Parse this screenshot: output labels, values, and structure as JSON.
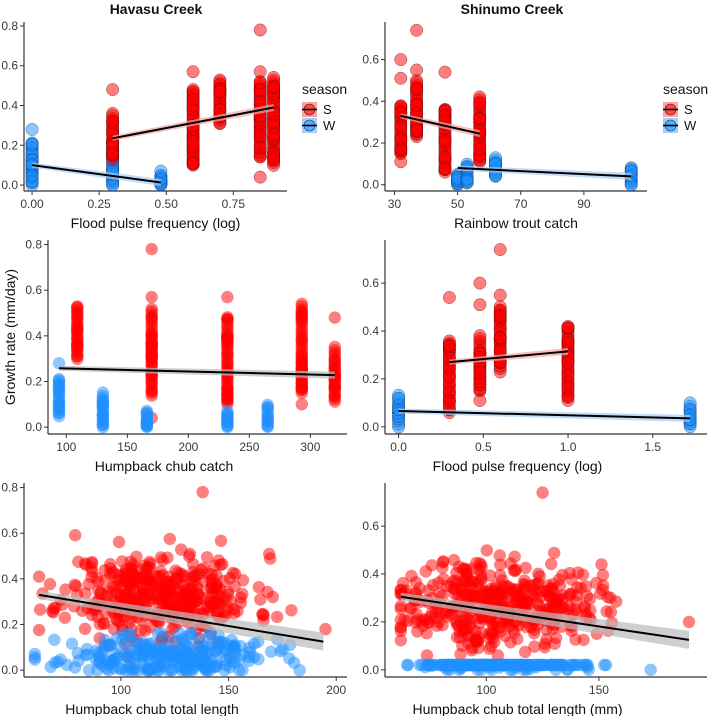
{
  "figure": {
    "columns": [
      "Havasu Creek",
      "Shinumo Creek"
    ],
    "shared_ylabel": "Growth rate (mm/day)"
  },
  "colors": {
    "S": "#ff0000",
    "W": "#1e90ff",
    "fit_line": "#000000",
    "ci_band": "#bbbbbb"
  },
  "legend": {
    "title": "season",
    "entries": [
      {
        "key": "S",
        "label": "S"
      },
      {
        "key": "W",
        "label": "W"
      }
    ]
  },
  "chart_data": [
    {
      "id": "havasu-flood",
      "type": "scatter",
      "title": "Havasu Creek",
      "xlabel": "Flood pulse frequency (log)",
      "ylabel": "",
      "xlim": [
        -0.03,
        0.95
      ],
      "ylim": [
        -0.03,
        0.82
      ],
      "xticks": [
        0.0,
        0.25,
        0.5,
        0.75
      ],
      "xtick_labels": [
        "0.00",
        "0.25",
        "0.50",
        "0.75"
      ],
      "yticks": [
        0.0,
        0.2,
        0.4,
        0.6,
        0.8
      ],
      "ytick_labels": [
        "0.0",
        "0.2",
        "0.4",
        "0.6",
        "0.8"
      ],
      "legend": true,
      "outlined": true,
      "groups": [
        {
          "season": "W",
          "x": 0.0,
          "ymin": 0.0,
          "ymax": 0.21,
          "outliers": [
            0.28
          ]
        },
        {
          "season": "W",
          "x": 0.3,
          "ymin": 0.0,
          "ymax": 0.22,
          "outliers": []
        },
        {
          "season": "W",
          "x": 0.48,
          "ymin": 0.0,
          "ymax": 0.05,
          "outliers": [
            0.07
          ]
        },
        {
          "season": "S",
          "x": 0.3,
          "ymin": 0.13,
          "ymax": 0.36,
          "outliers": [
            0.48
          ]
        },
        {
          "season": "S",
          "x": 0.6,
          "ymin": 0.1,
          "ymax": 0.48,
          "outliers": [
            0.57
          ]
        },
        {
          "season": "S",
          "x": 0.7,
          "ymin": 0.31,
          "ymax": 0.53,
          "outliers": []
        },
        {
          "season": "S",
          "x": 0.85,
          "ymin": 0.14,
          "ymax": 0.52,
          "outliers": [
            0.04,
            0.57,
            0.78
          ]
        },
        {
          "season": "S",
          "x": 0.9,
          "ymin": 0.1,
          "ymax": 0.54,
          "outliers": []
        }
      ],
      "fits": [
        {
          "season": "S",
          "x": [
            0.3,
            0.9
          ],
          "y": [
            0.235,
            0.39
          ]
        },
        {
          "season": "W",
          "x": [
            0.0,
            0.48
          ],
          "y": [
            0.1,
            0.013
          ]
        }
      ]
    },
    {
      "id": "shinumo-trout",
      "type": "scatter",
      "title": "Shinumo Creek",
      "xlabel": "Rainbow trout catch",
      "ylabel": "",
      "xlim": [
        27,
        110
      ],
      "ylim": [
        -0.03,
        0.78
      ],
      "xticks": [
        30,
        50,
        70,
        90
      ],
      "xtick_labels": [
        "30",
        "50",
        "70",
        "90"
      ],
      "yticks": [
        0.0,
        0.2,
        0.4,
        0.6
      ],
      "ytick_labels": [
        "0.0",
        "0.2",
        "0.4",
        "0.6"
      ],
      "legend": true,
      "outlined": true,
      "groups": [
        {
          "season": "S",
          "x": 32,
          "ymin": 0.15,
          "ymax": 0.38,
          "outliers": [
            0.11,
            0.51,
            0.6
          ]
        },
        {
          "season": "S",
          "x": 37,
          "ymin": 0.23,
          "ymax": 0.5,
          "outliers": [
            0.55,
            0.74
          ]
        },
        {
          "season": "S",
          "x": 46,
          "ymin": 0.06,
          "ymax": 0.36,
          "outliers": [
            0.54
          ]
        },
        {
          "season": "S",
          "x": 57,
          "ymin": 0.11,
          "ymax": 0.42,
          "outliers": []
        },
        {
          "season": "W",
          "x": 50,
          "ymin": 0.0,
          "ymax": 0.05,
          "outliers": []
        },
        {
          "season": "W",
          "x": 53,
          "ymin": 0.01,
          "ymax": 0.1,
          "outliers": []
        },
        {
          "season": "W",
          "x": 62,
          "ymin": 0.04,
          "ymax": 0.13,
          "outliers": []
        },
        {
          "season": "W",
          "x": 105,
          "ymin": 0.0,
          "ymax": 0.08,
          "outliers": []
        }
      ],
      "fits": [
        {
          "season": "S",
          "x": [
            32,
            57
          ],
          "y": [
            0.33,
            0.245
          ]
        },
        {
          "season": "W",
          "x": [
            50,
            105
          ],
          "y": [
            0.08,
            0.04
          ]
        }
      ]
    },
    {
      "id": "havasu-chub-catch",
      "type": "scatter",
      "title": "",
      "xlabel": "Humpback chub catch",
      "ylabel": "Growth rate (mm/day)",
      "xlim": [
        85,
        330
      ],
      "ylim": [
        -0.03,
        0.82
      ],
      "xticks": [
        100,
        150,
        200,
        250,
        300
      ],
      "xtick_labels": [
        "100",
        "150",
        "200",
        "250",
        "300"
      ],
      "yticks": [
        0.0,
        0.2,
        0.4,
        0.6,
        0.8
      ],
      "ytick_labels": [
        "0.0",
        "0.2",
        "0.4",
        "0.6",
        "0.8"
      ],
      "legend": false,
      "outlined": false,
      "groups": [
        {
          "season": "W",
          "x": 94,
          "ymin": 0.05,
          "ymax": 0.21,
          "outliers": [
            0.28
          ]
        },
        {
          "season": "W",
          "x": 130,
          "ymin": 0.0,
          "ymax": 0.15,
          "outliers": []
        },
        {
          "season": "W",
          "x": 166,
          "ymin": 0.0,
          "ymax": 0.07,
          "outliers": []
        },
        {
          "season": "W",
          "x": 232,
          "ymin": 0.0,
          "ymax": 0.07,
          "outliers": []
        },
        {
          "season": "W",
          "x": 265,
          "ymin": 0.0,
          "ymax": 0.1,
          "outliers": []
        },
        {
          "season": "S",
          "x": 109,
          "ymin": 0.3,
          "ymax": 0.53,
          "outliers": []
        },
        {
          "season": "S",
          "x": 170,
          "ymin": 0.14,
          "ymax": 0.52,
          "outliers": [
            0.04,
            0.57,
            0.78
          ]
        },
        {
          "season": "S",
          "x": 232,
          "ymin": 0.1,
          "ymax": 0.48,
          "outliers": [
            0.57
          ]
        },
        {
          "season": "S",
          "x": 293,
          "ymin": 0.15,
          "ymax": 0.54,
          "outliers": [
            0.1
          ]
        },
        {
          "season": "S",
          "x": 320,
          "ymin": 0.11,
          "ymax": 0.35,
          "outliers": [
            0.48
          ]
        }
      ],
      "fits": [
        {
          "season": "all",
          "x": [
            94,
            320
          ],
          "y": [
            0.258,
            0.228
          ]
        }
      ]
    },
    {
      "id": "shinumo-flood",
      "type": "scatter",
      "title": "",
      "xlabel": "Flood pulse frequency (log)",
      "ylabel": "",
      "xlim": [
        -0.08,
        1.82
      ],
      "ylim": [
        -0.03,
        0.78
      ],
      "xticks": [
        0.0,
        0.5,
        1.0,
        1.5
      ],
      "xtick_labels": [
        "0.0",
        "0.5",
        "1.0",
        "1.5"
      ],
      "yticks": [
        0.0,
        0.2,
        0.4,
        0.6
      ],
      "ytick_labels": [
        "0.0",
        "0.2",
        "0.4",
        "0.6"
      ],
      "legend": false,
      "outlined": true,
      "groups": [
        {
          "season": "W",
          "x": 0.0,
          "ymin": 0.0,
          "ymax": 0.13,
          "outliers": []
        },
        {
          "season": "W",
          "x": 1.72,
          "ymin": 0.0,
          "ymax": 0.1,
          "outliers": []
        },
        {
          "season": "S",
          "x": 0.3,
          "ymin": 0.06,
          "ymax": 0.36,
          "outliers": [
            0.54
          ]
        },
        {
          "season": "S",
          "x": 0.48,
          "ymin": 0.15,
          "ymax": 0.38,
          "outliers": [
            0.11,
            0.51,
            0.6
          ]
        },
        {
          "season": "S",
          "x": 0.6,
          "ymin": 0.23,
          "ymax": 0.5,
          "outliers": [
            0.55,
            0.74
          ]
        },
        {
          "season": "S",
          "x": 1.0,
          "ymin": 0.11,
          "ymax": 0.42,
          "outliers": []
        }
      ],
      "fits": [
        {
          "season": "S",
          "x": [
            0.3,
            1.0
          ],
          "y": [
            0.27,
            0.315
          ]
        },
        {
          "season": "W",
          "x": [
            0.0,
            1.72
          ],
          "y": [
            0.066,
            0.035
          ]
        }
      ]
    },
    {
      "id": "havasu-length",
      "type": "scatter",
      "title": "",
      "xlabel": "Humpback chub total length",
      "ylabel": "",
      "xlim": [
        55,
        205
      ],
      "ylim": [
        -0.03,
        0.82
      ],
      "xticks": [
        100,
        150,
        200
      ],
      "xtick_labels": [
        "100",
        "150",
        "200"
      ],
      "yticks": [
        0.0,
        0.2,
        0.4,
        0.6,
        0.8
      ],
      "ytick_labels": [
        "0.0",
        "0.2",
        "0.4",
        "0.6",
        "0.8"
      ],
      "legend": false,
      "outlined": false,
      "clouds": [
        {
          "season": "S",
          "n": 420,
          "x_range": [
            62,
            195
          ],
          "x_center": 118,
          "x_spread": 22,
          "y_center": 0.33,
          "y_spread": 0.09,
          "y_min": 0.04,
          "y_max": 0.78,
          "seed": 11
        },
        {
          "season": "W",
          "n": 260,
          "x_range": [
            60,
            183
          ],
          "x_center": 120,
          "x_spread": 24,
          "y_center": 0.06,
          "y_spread": 0.05,
          "y_min": 0.0,
          "y_max": 0.28,
          "seed": 23
        }
      ],
      "fits": [
        {
          "season": "all",
          "x": [
            62,
            194
          ],
          "y": [
            0.33,
            0.125
          ],
          "ci": true
        }
      ]
    },
    {
      "id": "shinumo-length",
      "type": "scatter",
      "title": "",
      "xlabel": "Humpback chub total length (mm)",
      "ylabel": "",
      "xlim": [
        55,
        198
      ],
      "ylim": [
        -0.03,
        0.78
      ],
      "xticks": [
        100,
        150
      ],
      "xtick_labels": [
        "100",
        "150"
      ],
      "yticks": [
        0.0,
        0.2,
        0.4,
        0.6
      ],
      "ytick_labels": [
        "0.0",
        "0.2",
        "0.4",
        "0.6"
      ],
      "legend": false,
      "outlined": false,
      "clouds": [
        {
          "season": "S",
          "n": 430,
          "x_range": [
            62,
            190
          ],
          "x_center": 105,
          "x_spread": 22,
          "y_center": 0.28,
          "y_spread": 0.09,
          "y_min": 0.06,
          "y_max": 0.74,
          "seed": 37
        },
        {
          "season": "W",
          "n": 200,
          "x_range": [
            65,
            173
          ],
          "x_center": 105,
          "x_spread": 20,
          "y_center": 0.06,
          "y_spread": 0.04,
          "y_min": 0.0,
          "y_max": 0.14,
          "seed": 51
        }
      ],
      "fits": [
        {
          "season": "all",
          "x": [
            62,
            190
          ],
          "y": [
            0.305,
            0.125
          ],
          "ci": true
        }
      ]
    }
  ]
}
